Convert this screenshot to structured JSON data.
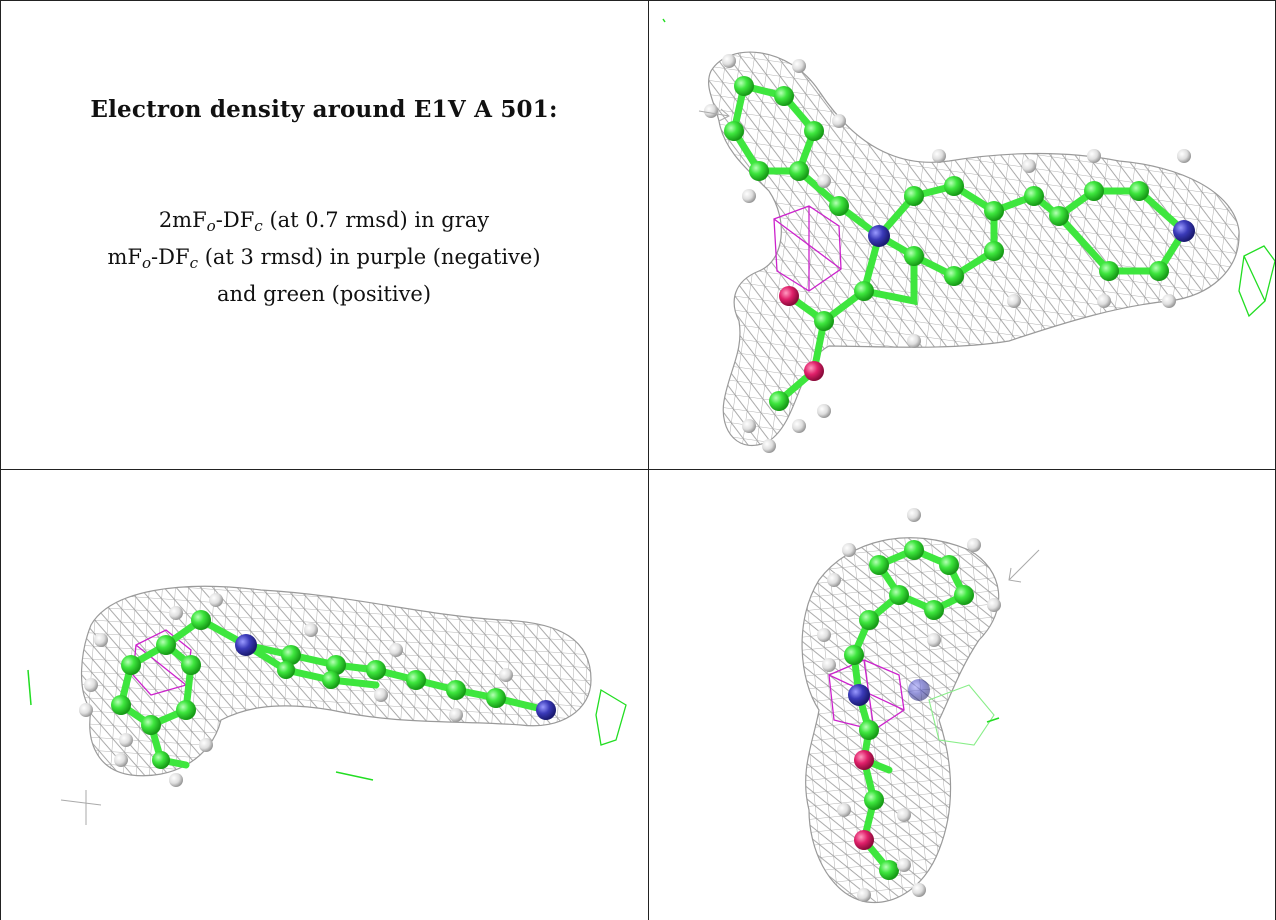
{
  "caption": {
    "title": "Electron density around E1V A 501:",
    "line1": {
      "pre": "2mF",
      "sub1": "o",
      "mid": "-DF",
      "sub2": "c",
      "post": " (at 0.7 rmsd) in gray"
    },
    "line2": {
      "pre": "mF",
      "sub1": "o",
      "mid": "-DF",
      "sub2": "c",
      "post": " (at 3 rmsd) in purple (negative)"
    },
    "line3": "and green (positive)"
  },
  "panels": [
    {
      "name": "view-top-right",
      "description_hidden": true
    },
    {
      "name": "view-bottom-left",
      "description_hidden": true
    },
    {
      "name": "view-bottom-right",
      "description_hidden": true
    }
  ],
  "colors": {
    "carbon": "#3ee63e",
    "hydrogen": "#e8e8e8",
    "nitrogen": "#3a3ab8",
    "oxygen": "#e0206a",
    "mesh_2fofc": "#9a9a9a",
    "mesh_negative": "#cc22cc",
    "mesh_positive": "#22dd22"
  }
}
